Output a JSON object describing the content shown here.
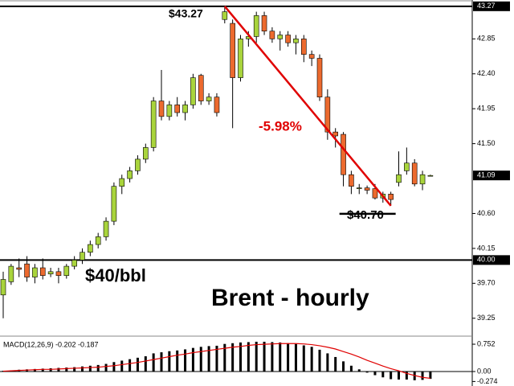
{
  "chart_data": [
    {
      "type": "candlestick",
      "open": [
        39.55,
        39.72,
        39.9,
        39.95,
        39.78,
        39.9,
        39.82,
        39.85,
        39.8,
        39.92,
        40.0,
        40.1,
        40.2,
        40.3,
        40.5,
        40.95,
        41.05,
        41.15,
        41.3,
        41.45,
        42.05,
        41.85,
        42.0,
        41.9,
        42.0,
        42.38,
        42.05,
        42.1,
        43.1,
        43.05,
        42.35,
        42.85,
        42.88,
        43.15,
        42.95,
        42.85,
        42.9,
        42.8,
        42.85,
        42.65,
        42.6,
        42.1,
        41.65,
        41.62,
        41.1,
        40.92,
        40.93,
        40.92,
        40.8,
        40.85,
        41.0,
        41.15,
        41.25,
        40.98,
        41.09
      ],
      "high": [
        39.85,
        39.95,
        40.02,
        40.05,
        39.95,
        40.02,
        39.9,
        39.9,
        39.95,
        40.05,
        40.15,
        40.25,
        40.35,
        40.55,
        41.0,
        41.1,
        41.2,
        41.35,
        41.5,
        42.1,
        42.45,
        42.05,
        42.1,
        42.05,
        42.4,
        42.4,
        42.15,
        42.15,
        43.27,
        43.1,
        42.9,
        42.95,
        43.2,
        43.2,
        43.0,
        42.95,
        42.95,
        42.9,
        42.9,
        42.7,
        42.65,
        42.2,
        41.7,
        41.65,
        41.15,
        40.98,
        40.96,
        40.98,
        40.88,
        40.88,
        41.4,
        41.45,
        41.3,
        41.15,
        41.1
      ],
      "low": [
        39.25,
        39.68,
        39.78,
        39.72,
        39.7,
        39.75,
        39.78,
        39.7,
        39.76,
        39.88,
        39.95,
        40.05,
        40.15,
        40.25,
        40.45,
        40.85,
        41.0,
        41.1,
        41.25,
        41.4,
        41.8,
        41.8,
        41.85,
        41.8,
        41.95,
        42.0,
        42.0,
        41.85,
        43.05,
        41.7,
        42.3,
        42.75,
        42.8,
        42.9,
        42.8,
        42.7,
        42.75,
        42.65,
        42.55,
        42.5,
        42.05,
        41.55,
        41.45,
        40.95,
        40.85,
        40.85,
        40.85,
        40.78,
        40.74,
        40.7,
        40.95,
        41.1,
        40.95,
        40.9,
        41.08
      ],
      "close": [
        39.75,
        39.92,
        39.88,
        39.78,
        39.9,
        39.8,
        39.85,
        39.8,
        39.92,
        40.0,
        40.1,
        40.2,
        40.3,
        40.5,
        40.95,
        41.05,
        41.15,
        41.3,
        41.45,
        42.05,
        41.85,
        42.0,
        41.9,
        42.0,
        42.35,
        42.05,
        42.1,
        41.9,
        43.2,
        42.35,
        42.85,
        42.88,
        43.15,
        42.95,
        42.85,
        42.9,
        42.8,
        42.85,
        42.65,
        42.6,
        42.1,
        41.65,
        41.6,
        41.1,
        40.95,
        40.93,
        40.9,
        40.8,
        40.85,
        40.78,
        41.1,
        41.25,
        40.98,
        41.1,
        41.09
      ],
      "up_color": "#a9d43c",
      "down_color": "#ec6a2e",
      "ylim": [
        39.04,
        43.32
      ],
      "yticks": [
        42.85,
        {
          "value": 42.4,
          "label": "42.40"
        },
        41.95,
        {
          "value": 41.5,
          "label": "41.50"
        },
        {
          "value": 40.6,
          "label": "40.60"
        },
        40.15,
        {
          "value": 39.7,
          "label": "39.70"
        },
        39.25
      ],
      "levels": [
        43.27,
        {
          "value": 40,
          "label": "40.00"
        }
      ],
      "last_price": 41.09,
      "annotations": [
        "$43.27",
        "-5.98%",
        "$40.70",
        "$40/bbl",
        "Brent - hourly"
      ]
    },
    {
      "type": "macd",
      "title": "MACD(12,26,9) -0.202 -0.187",
      "values": [
        0.02,
        0.03,
        0.05,
        0.06,
        0.07,
        0.08,
        0.09,
        0.1,
        0.11,
        0.12,
        0.14,
        0.16,
        0.18,
        0.21,
        0.26,
        0.3,
        0.34,
        0.38,
        0.42,
        0.5,
        0.53,
        0.56,
        0.58,
        0.61,
        0.65,
        0.68,
        0.7,
        0.71,
        0.76,
        0.78,
        0.8,
        0.81,
        0.82,
        0.82,
        0.81,
        0.8,
        0.78,
        0.76,
        0.72,
        0.68,
        0.6,
        0.5,
        0.4,
        0.28,
        0.16,
        0.06,
        -0.03,
        -0.1,
        -0.16,
        -0.21,
        -0.22,
        -0.22,
        -0.24,
        -0.23,
        -0.202
      ],
      "signal": [
        0.01,
        0.02,
        0.03,
        0.04,
        0.05,
        0.06,
        0.06,
        0.07,
        0.08,
        0.09,
        0.1,
        0.11,
        0.12,
        0.14,
        0.16,
        0.19,
        0.22,
        0.25,
        0.29,
        0.33,
        0.37,
        0.41,
        0.45,
        0.48,
        0.52,
        0.55,
        0.58,
        0.61,
        0.64,
        0.67,
        0.69,
        0.72,
        0.74,
        0.75,
        0.76,
        0.77,
        0.77,
        0.77,
        0.76,
        0.74,
        0.71,
        0.67,
        0.62,
        0.55,
        0.48,
        0.4,
        0.31,
        0.23,
        0.15,
        0.08,
        0.02,
        -0.05,
        -0.11,
        -0.16,
        -0.187
      ],
      "color": "#000000",
      "signal_color": "#e00000",
      "ylim": [
        -0.354,
        0.93
      ],
      "yticks": [
        0.752,
        {
          "value": 0,
          "label": "0.00"
        },
        -0.274
      ]
    }
  ]
}
